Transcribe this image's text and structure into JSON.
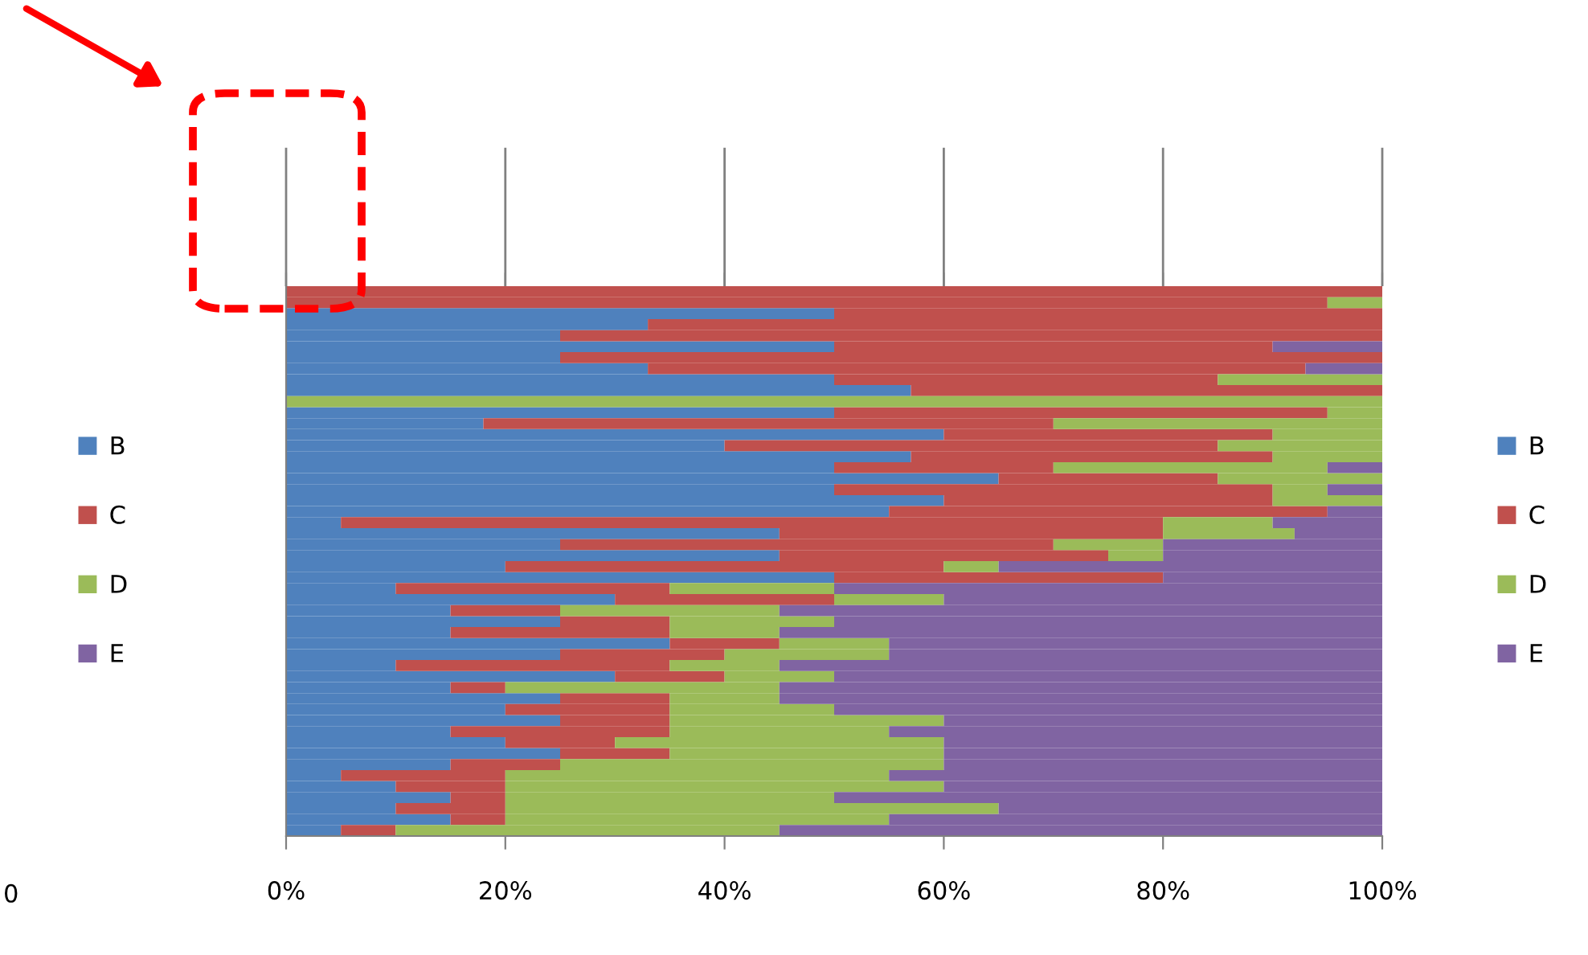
{
  "chart_data": [
    {
      "type": "other",
      "legend": "right",
      "annotations": [
        "0"
      ],
      "series": [
        {
          "name": "B",
          "color": "#4f81bd"
        },
        {
          "name": "C",
          "color": "#c0504d"
        },
        {
          "name": "D",
          "color": "#9bbb59"
        },
        {
          "name": "E",
          "color": "#8064a2"
        }
      ]
    },
    {
      "type": "bar",
      "orientation": "horizontal",
      "stacked": true,
      "legend": "right",
      "categories": [
        null,
        null,
        null,
        null,
        null,
        null,
        null,
        null,
        null,
        null,
        null,
        null,
        null,
        null,
        null,
        null,
        null,
        null,
        null,
        null,
        null,
        null,
        null,
        null,
        null,
        null,
        null,
        null,
        null,
        null,
        null,
        null,
        null,
        null,
        null,
        null,
        null,
        null,
        null,
        null,
        null,
        null,
        null,
        null,
        null,
        null,
        null,
        null,
        null,
        null
      ],
      "xlim": [
        0,
        100
      ],
      "xticks": [
        {
          "value": 0,
          "label": "0%"
        },
        {
          "value": 20,
          "label": "20%"
        },
        {
          "value": 40,
          "label": "40%"
        },
        {
          "value": 60,
          "label": "60%"
        },
        {
          "value": 80,
          "label": "80%"
        },
        {
          "value": 100,
          "label": "100%"
        }
      ],
      "series": [
        {
          "name": "B",
          "color": "#4f81bd",
          "values": [
            0,
            0,
            50,
            33,
            25,
            50,
            25,
            33,
            50,
            57,
            0,
            50,
            18,
            60,
            40,
            57,
            50,
            65,
            50,
            60,
            55,
            5,
            45,
            25,
            45,
            20,
            50,
            10,
            30,
            15,
            25,
            15,
            35,
            25,
            10,
            30,
            15,
            25,
            20,
            25,
            15,
            20,
            25,
            15,
            5,
            10,
            15,
            10,
            15,
            5
          ]
        },
        {
          "name": "C",
          "color": "#c0504d",
          "values": [
            100,
            95,
            50,
            67,
            75,
            40,
            75,
            60,
            35,
            43,
            0,
            45,
            52,
            30,
            45,
            33,
            20,
            20,
            40,
            30,
            40,
            75,
            35,
            45,
            30,
            40,
            30,
            25,
            20,
            10,
            10,
            20,
            10,
            15,
            25,
            10,
            5,
            10,
            15,
            10,
            20,
            10,
            10,
            10,
            15,
            10,
            5,
            10,
            5,
            5
          ]
        },
        {
          "name": "D",
          "color": "#9bbb59",
          "values": [
            0,
            5,
            0,
            0,
            0,
            0,
            0,
            0,
            15,
            0,
            100,
            5,
            30,
            10,
            15,
            10,
            25,
            15,
            5,
            10,
            0,
            10,
            12,
            10,
            5,
            5,
            0,
            15,
            10,
            20,
            15,
            10,
            10,
            15,
            10,
            10,
            25,
            10,
            15,
            25,
            20,
            30,
            25,
            35,
            35,
            40,
            30,
            45,
            35,
            35
          ]
        },
        {
          "name": "E",
          "color": "#8064a2",
          "values": [
            0,
            0,
            0,
            0,
            0,
            10,
            0,
            7,
            0,
            0,
            0,
            0,
            0,
            0,
            0,
            0,
            5,
            0,
            5,
            0,
            5,
            10,
            8,
            20,
            20,
            35,
            20,
            50,
            40,
            55,
            50,
            55,
            45,
            45,
            55,
            50,
            55,
            55,
            50,
            40,
            45,
            40,
            40,
            40,
            45,
            40,
            50,
            35,
            45,
            55
          ]
        }
      ]
    }
  ]
}
